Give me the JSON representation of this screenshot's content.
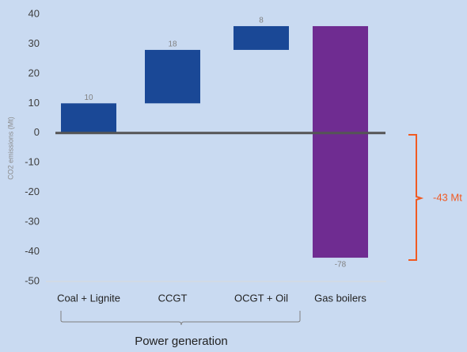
{
  "chart_data": {
    "type": "waterfall",
    "y_axis_label": "CO2 emissions (Mt)",
    "categories": [
      "Coal + Lignite",
      "CCGT",
      "OCGT + Oil",
      "Gas boilers"
    ],
    "values": [
      10,
      18,
      8,
      -78
    ],
    "colors": [
      "#1a4896",
      "#1a4896",
      "#1a4896",
      "#6f2c91"
    ],
    "ylim": [
      -50,
      40
    ],
    "yticks": [
      -50,
      -40,
      -30,
      -20,
      -10,
      0,
      10,
      20,
      30,
      40
    ],
    "annotation": "-43 Mt",
    "group_label": "Power generation"
  }
}
